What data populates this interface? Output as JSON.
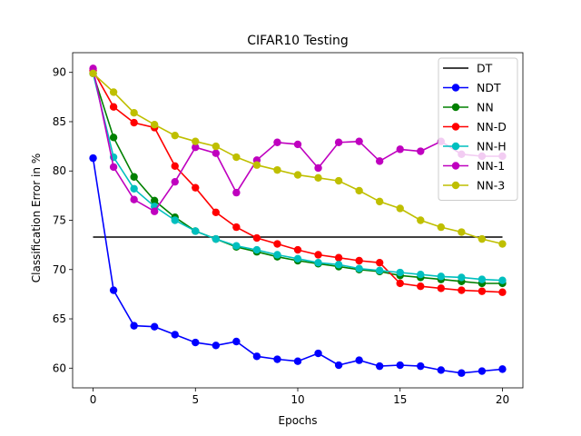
{
  "chart_data": {
    "type": "line",
    "title": "CIFAR10 Testing",
    "xlabel": "Epochs",
    "ylabel": "Classification Error in %",
    "xlim": [
      -1,
      21
    ],
    "ylim": [
      58,
      92
    ],
    "xticks": [
      0,
      5,
      10,
      15,
      20
    ],
    "yticks": [
      60,
      65,
      70,
      75,
      80,
      85,
      90
    ],
    "grid": false,
    "legend_position": "top-right",
    "x": [
      0,
      1,
      2,
      3,
      4,
      5,
      6,
      7,
      8,
      9,
      10,
      11,
      12,
      13,
      14,
      15,
      16,
      17,
      18,
      19,
      20
    ],
    "series": [
      {
        "name": "DT",
        "color": "#000000",
        "marker": "none",
        "x": [
          0,
          20
        ],
        "values": [
          73.3,
          73.3
        ]
      },
      {
        "name": "NDT",
        "color": "#0000ff",
        "marker": "circle",
        "values": [
          81.3,
          67.9,
          64.3,
          64.2,
          63.4,
          62.6,
          62.3,
          62.7,
          61.2,
          60.9,
          60.7,
          61.5,
          60.3,
          60.8,
          60.2,
          60.3,
          60.2,
          59.8,
          59.5,
          59.7,
          59.9
        ]
      },
      {
        "name": "NN",
        "color": "#008000",
        "marker": "circle",
        "values": [
          89.9,
          83.4,
          79.4,
          77.0,
          75.3,
          73.9,
          73.1,
          72.3,
          71.8,
          71.3,
          70.9,
          70.6,
          70.3,
          70.0,
          69.8,
          69.4,
          69.2,
          69.0,
          68.8,
          68.6,
          68.6
        ]
      },
      {
        "name": "NN-D",
        "color": "#ff0000",
        "marker": "circle",
        "values": [
          90.2,
          86.5,
          84.9,
          84.4,
          80.5,
          78.3,
          75.8,
          74.3,
          73.2,
          72.6,
          72.0,
          71.5,
          71.2,
          70.9,
          70.7,
          68.6,
          68.3,
          68.1,
          67.9,
          67.8,
          67.7
        ]
      },
      {
        "name": "NN-H",
        "color": "#00bfbf",
        "marker": "circle",
        "values": [
          89.9,
          81.4,
          78.2,
          76.4,
          75.0,
          73.9,
          73.1,
          72.4,
          72.0,
          71.5,
          71.1,
          70.7,
          70.5,
          70.1,
          69.9,
          69.7,
          69.5,
          69.3,
          69.2,
          69.0,
          68.9
        ]
      },
      {
        "name": "NN-1",
        "color": "#bf00bf",
        "marker": "circle",
        "values": [
          90.4,
          80.4,
          77.1,
          75.9,
          78.9,
          82.4,
          81.8,
          77.8,
          81.1,
          82.9,
          82.7,
          80.3,
          82.9,
          83.0,
          81.0,
          82.2,
          82.0,
          83.0,
          81.7,
          81.5,
          81.5
        ]
      },
      {
        "name": "NN-3",
        "color": "#bfbf00",
        "marker": "circle",
        "values": [
          89.9,
          88.0,
          85.9,
          84.7,
          83.6,
          83.0,
          82.5,
          81.4,
          80.6,
          80.1,
          79.6,
          79.3,
          79.0,
          78.0,
          76.9,
          76.2,
          75.0,
          74.3,
          73.8,
          73.1,
          72.6
        ]
      }
    ]
  }
}
